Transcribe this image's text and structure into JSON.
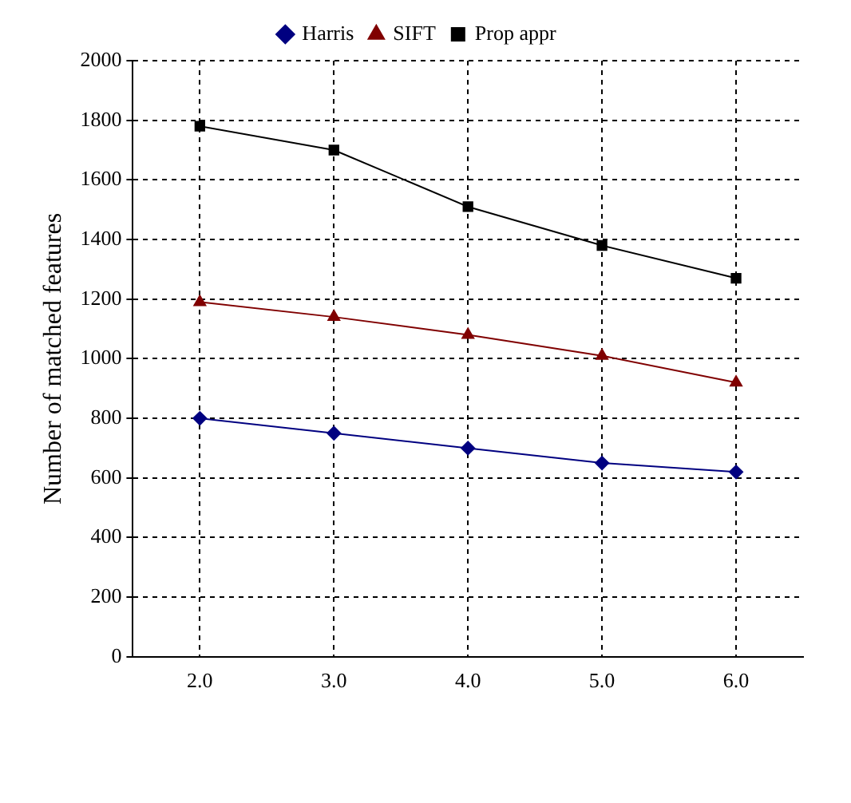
{
  "chart_data": {
    "type": "line",
    "ylabel": "Number of matched features",
    "categories": [
      "2.0",
      "3.0",
      "4.0",
      "5.0",
      "6.0"
    ],
    "series": [
      {
        "name": "Harris",
        "color": "#000080",
        "marker": "diamond",
        "values": [
          800,
          750,
          700,
          650,
          620
        ]
      },
      {
        "name": "SIFT",
        "color": "#800000",
        "marker": "triangle",
        "values": [
          1190,
          1140,
          1080,
          1010,
          920
        ]
      },
      {
        "name": "Prop appr",
        "color": "#000000",
        "marker": "square",
        "values": [
          1780,
          1700,
          1510,
          1380,
          1270
        ]
      }
    ],
    "ylim": [
      0,
      2000
    ],
    "yticks": [
      0,
      200,
      400,
      600,
      800,
      1000,
      1200,
      1400,
      1600,
      1800,
      2000
    ],
    "grid": true,
    "legend": "top",
    "line_style": "solid"
  }
}
